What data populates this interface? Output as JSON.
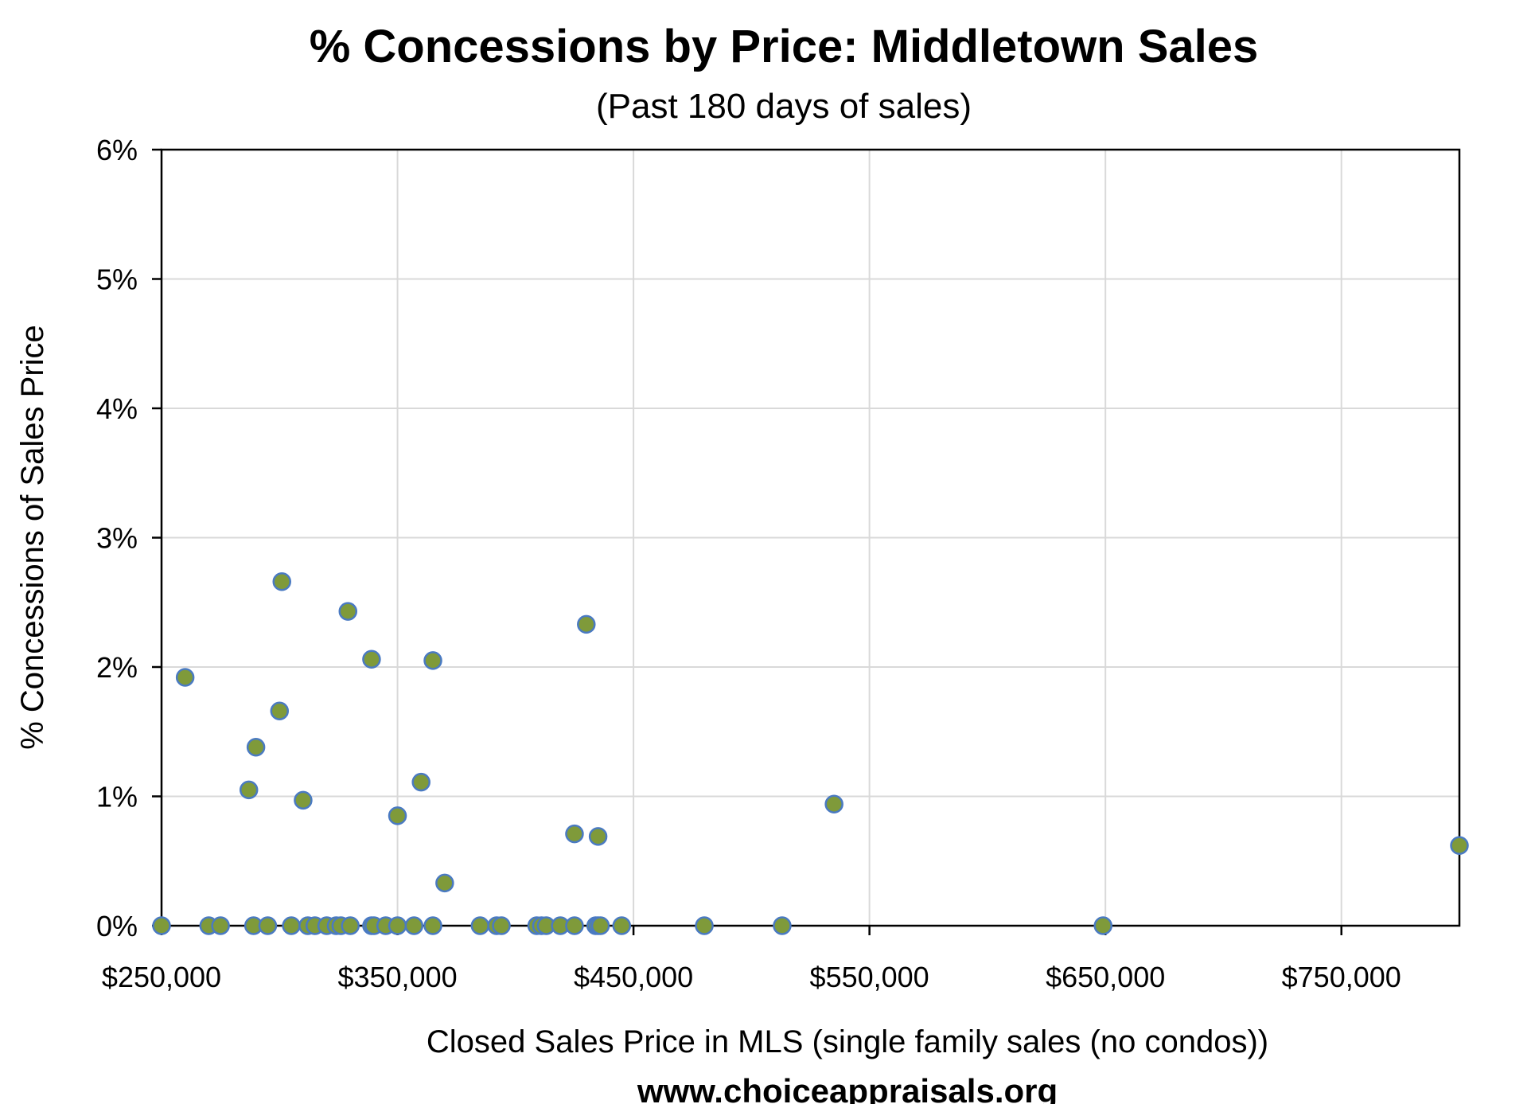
{
  "chart_data": {
    "type": "scatter",
    "title": "% Concessions by Price: Middletown Sales",
    "subtitle": "(Past 180 days of sales)",
    "xlabel": "Closed Sales Price in MLS (single family sales (no condos))",
    "ylabel": "% Concessions of Sales Price",
    "footer": "www.choiceappraisals.org",
    "xlim": [
      250000,
      800000
    ],
    "ylim": [
      0,
      0.06
    ],
    "x_ticks": [
      {
        "value": 250000,
        "label": "$250,000"
      },
      {
        "value": 350000,
        "label": "$350,000"
      },
      {
        "value": 450000,
        "label": "$450,000"
      },
      {
        "value": 550000,
        "label": "$550,000"
      },
      {
        "value": 650000,
        "label": "$650,000"
      },
      {
        "value": 750000,
        "label": "$750,000"
      }
    ],
    "x_gridlines": [
      250000,
      350000,
      450000,
      550000,
      650000,
      750000,
      800000
    ],
    "y_ticks": [
      {
        "value": 0,
        "label": "0%"
      },
      {
        "value": 0.01,
        "label": "1%"
      },
      {
        "value": 0.02,
        "label": "2%"
      },
      {
        "value": 0.03,
        "label": "3%"
      },
      {
        "value": 0.04,
        "label": "4%"
      },
      {
        "value": 0.05,
        "label": "5%"
      },
      {
        "value": 0.06,
        "label": "6%"
      }
    ],
    "grid": true,
    "marker_fill": "#7f9a3a",
    "marker_stroke": "#4a7ac2",
    "series": [
      {
        "points": [
          [
            260000,
            0.0192
          ],
          [
            287000,
            0.0105
          ],
          [
            290000,
            0.0138
          ],
          [
            300000,
            0.0166
          ],
          [
            301000,
            0.0266
          ],
          [
            310000,
            0.0097
          ],
          [
            329000,
            0.0243
          ],
          [
            339000,
            0.0206
          ],
          [
            350000,
            0.0085
          ],
          [
            360000,
            0.0111
          ],
          [
            365000,
            0.0205
          ],
          [
            370000,
            0.0033
          ],
          [
            425000,
            0.0071
          ],
          [
            430000,
            0.0233
          ],
          [
            435000,
            0.0069
          ],
          [
            535000,
            0.0094
          ],
          [
            800000,
            0.0062
          ],
          [
            250000,
            0
          ],
          [
            270000,
            0
          ],
          [
            275000,
            0
          ],
          [
            289000,
            0
          ],
          [
            295000,
            0
          ],
          [
            305000,
            0
          ],
          [
            312000,
            0
          ],
          [
            315000,
            0
          ],
          [
            320000,
            0
          ],
          [
            324000,
            0
          ],
          [
            326000,
            0
          ],
          [
            330000,
            0
          ],
          [
            339000,
            0
          ],
          [
            340000,
            0
          ],
          [
            345000,
            0
          ],
          [
            350000,
            0
          ],
          [
            357000,
            0
          ],
          [
            365000,
            0
          ],
          [
            385000,
            0
          ],
          [
            392000,
            0
          ],
          [
            394000,
            0
          ],
          [
            409000,
            0
          ],
          [
            411000,
            0
          ],
          [
            413000,
            0
          ],
          [
            419000,
            0
          ],
          [
            425000,
            0
          ],
          [
            434000,
            0
          ],
          [
            435000,
            0
          ],
          [
            436000,
            0
          ],
          [
            445000,
            0
          ],
          [
            480000,
            0
          ],
          [
            513000,
            0
          ],
          [
            649000,
            0
          ]
        ]
      }
    ]
  }
}
